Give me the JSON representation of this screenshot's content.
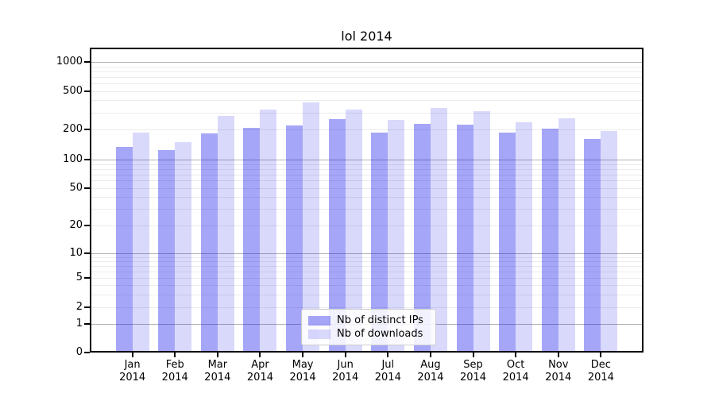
{
  "chart_data": {
    "type": "bar",
    "title": "lol 2014",
    "categories": [
      "Jan 2014",
      "Feb 2014",
      "Mar 2014",
      "Apr 2014",
      "May 2014",
      "Jun 2014",
      "Jul 2014",
      "Aug 2014",
      "Sep 2014",
      "Oct 2014",
      "Nov 2014",
      "Dec 2014"
    ],
    "series": [
      {
        "name": "Nb of distinct IPs",
        "color": "rgba(0,0,235,0.35)",
        "values": [
          130,
          120,
          175,
          200,
          210,
          245,
          180,
          220,
          215,
          180,
          195,
          155
        ]
      },
      {
        "name": "Nb of downloads",
        "color": "rgba(0,0,235,0.15)",
        "values": [
          180,
          145,
          265,
          310,
          365,
          310,
          240,
          320,
          300,
          230,
          250,
          185
        ]
      }
    ],
    "xlabel": "",
    "ylabel": "",
    "yscale": "symlog",
    "yticks": [
      0,
      1,
      2,
      5,
      10,
      20,
      50,
      100,
      200,
      500,
      1000
    ],
    "ylim": [
      0,
      1400
    ],
    "grid": "horizontal",
    "legend_position": "lower center",
    "colors": {
      "grid_minor": "#ececec",
      "grid_major": "#b3b3b3",
      "spine": "#000000",
      "background": "#ffffff"
    }
  }
}
